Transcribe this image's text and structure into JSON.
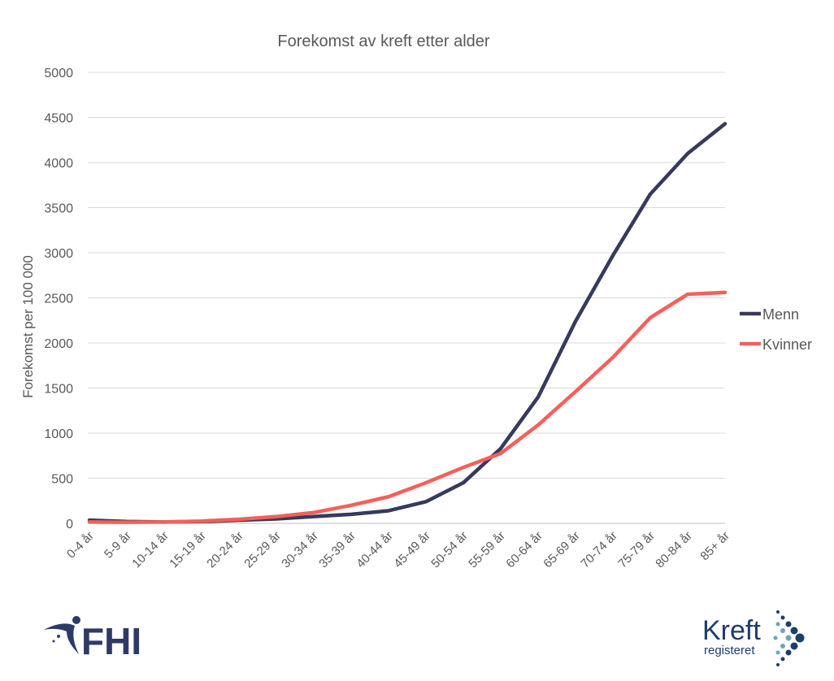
{
  "chart_data": {
    "type": "line",
    "title": "Forekomst av kreft etter alder",
    "xlabel": "",
    "ylabel": "Forekomst per 100 000",
    "ylim": [
      0,
      5000
    ],
    "yticks": [
      0,
      500,
      1000,
      1500,
      2000,
      2500,
      3000,
      3500,
      4000,
      4500,
      5000
    ],
    "grid": true,
    "legend_position": "right",
    "categories": [
      "0-4 år",
      "5-9 år",
      "10-14 år",
      "15-19 år",
      "20-24 år",
      "25-29 år",
      "30-34 år",
      "35-39 år",
      "40-44 år",
      "45-49 år",
      "50-54 år",
      "55-59 år",
      "60-64 år",
      "65-69 år",
      "70-74 år",
      "75-79 år",
      "80-84 år",
      "85+ år"
    ],
    "series": [
      {
        "name": "Menn",
        "color": "#363a5c",
        "values": [
          35,
          20,
          15,
          20,
          35,
          50,
          75,
          100,
          140,
          240,
          450,
          830,
          1400,
          2240,
          2970,
          3650,
          4100,
          4430
        ]
      },
      {
        "name": "Kvinner",
        "color": "#f4605a",
        "values": [
          15,
          12,
          15,
          25,
          45,
          75,
          120,
          200,
          295,
          450,
          620,
          775,
          1090,
          1460,
          1840,
          2280,
          2540,
          2560
        ]
      }
    ]
  },
  "logos": {
    "fhi": "FHI",
    "kreft_top": "Kreft",
    "kreft_bottom": "registeret"
  }
}
